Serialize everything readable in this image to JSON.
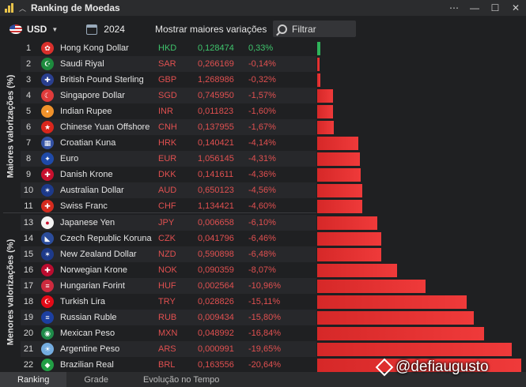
{
  "window": {
    "title": "Ranking de Moedas",
    "controls": [
      "⋯",
      "—",
      "☐",
      "✕"
    ]
  },
  "toolbar": {
    "currency": "USD",
    "year": "2024",
    "variations_label": "Mostrar maiores variações",
    "filter_placeholder": "Filtrar"
  },
  "side_labels": {
    "top": "Maiores valorizações (%)",
    "bottom": "Menores valorizações (%)"
  },
  "colors": {
    "positive": "#2fb35a",
    "negative": "#e03030"
  },
  "rows": [
    {
      "rank": "1",
      "name": "Hong Kong Dollar",
      "code": "HKD",
      "price": "0,128474",
      "change": "0,33%",
      "value": 0.33,
      "flag_color": "#d9302c",
      "flag_glyph": "✿"
    },
    {
      "rank": "2",
      "name": "Saudi Riyal",
      "code": "SAR",
      "price": "0,266169",
      "change": "-0,14%",
      "value": -0.14,
      "flag_color": "#1d8a3e",
      "flag_glyph": "☪"
    },
    {
      "rank": "3",
      "name": "British Pound Sterling",
      "code": "GBP",
      "price": "1,268986",
      "change": "-0,32%",
      "value": -0.32,
      "flag_color": "#2a3f8f",
      "flag_glyph": "✚"
    },
    {
      "rank": "4",
      "name": "Singapore Dollar",
      "code": "SGD",
      "price": "0,745950",
      "change": "-1,57%",
      "value": -1.57,
      "flag_color": "#e03b3b",
      "flag_glyph": "☾"
    },
    {
      "rank": "5",
      "name": "Indian Rupee",
      "code": "INR",
      "price": "0,011823",
      "change": "-1,60%",
      "value": -1.6,
      "flag_color": "#f0922b",
      "flag_glyph": "•"
    },
    {
      "rank": "6",
      "name": "Chinese Yuan Offshore",
      "code": "CNH",
      "price": "0,137955",
      "change": "-1,67%",
      "value": -1.67,
      "flag_color": "#d9261c",
      "flag_glyph": "★"
    },
    {
      "rank": "7",
      "name": "Croatian Kuna",
      "code": "HRK",
      "price": "0,140421",
      "change": "-4,14%",
      "value": -4.14,
      "flag_color": "#3351a3",
      "flag_glyph": "▦"
    },
    {
      "rank": "8",
      "name": "Euro",
      "code": "EUR",
      "price": "1,056145",
      "change": "-4,31%",
      "value": -4.31,
      "flag_color": "#1f4aa8",
      "flag_glyph": "✦"
    },
    {
      "rank": "9",
      "name": "Danish Krone",
      "code": "DKK",
      "price": "0,141611",
      "change": "-4,36%",
      "value": -4.36,
      "flag_color": "#c8102e",
      "flag_glyph": "✚"
    },
    {
      "rank": "10",
      "name": "Australian Dollar",
      "code": "AUD",
      "price": "0,650123",
      "change": "-4,56%",
      "value": -4.56,
      "flag_color": "#1d3a8a",
      "flag_glyph": "✶"
    },
    {
      "rank": "11",
      "name": "Swiss Franc",
      "code": "CHF",
      "price": "1,134421",
      "change": "-4,60%",
      "value": -4.6,
      "flag_color": "#d52b1e",
      "flag_glyph": "✚"
    },
    {
      "rank": "13",
      "name": "Japanese Yen",
      "code": "JPY",
      "price": "0,006658",
      "change": "-6,10%",
      "value": -6.1,
      "flag_color": "#f4f4f4",
      "flag_glyph": "●"
    },
    {
      "rank": "14",
      "name": "Czech Republic Koruna",
      "code": "CZK",
      "price": "0,041796",
      "change": "-6,46%",
      "value": -6.46,
      "flag_color": "#2b4c9b",
      "flag_glyph": "◣"
    },
    {
      "rank": "15",
      "name": "New Zealand Dollar",
      "code": "NZD",
      "price": "0,590898",
      "change": "-6,48%",
      "value": -6.48,
      "flag_color": "#1d3a8a",
      "flag_glyph": "✶"
    },
    {
      "rank": "16",
      "name": "Norwegian Krone",
      "code": "NOK",
      "price": "0,090359",
      "change": "-8,07%",
      "value": -8.07,
      "flag_color": "#ba0c2f",
      "flag_glyph": "✚"
    },
    {
      "rank": "17",
      "name": "Hungarian Forint",
      "code": "HUF",
      "price": "0,002564",
      "change": "-10,96%",
      "value": -10.96,
      "flag_color": "#cd2a3e",
      "flag_glyph": "≡"
    },
    {
      "rank": "18",
      "name": "Turkish Lira",
      "code": "TRY",
      "price": "0,028826",
      "change": "-15,11%",
      "value": -15.11,
      "flag_color": "#e30a17",
      "flag_glyph": "☪"
    },
    {
      "rank": "19",
      "name": "Russian Ruble",
      "code": "RUB",
      "price": "0,009434",
      "change": "-15,80%",
      "value": -15.8,
      "flag_color": "#1c3fa0",
      "flag_glyph": "≡"
    },
    {
      "rank": "20",
      "name": "Mexican Peso",
      "code": "MXN",
      "price": "0,048992",
      "change": "-16,84%",
      "value": -16.84,
      "flag_color": "#1e8a49",
      "flag_glyph": "◉"
    },
    {
      "rank": "21",
      "name": "Argentine Peso",
      "code": "ARS",
      "price": "0,000991",
      "change": "-19,65%",
      "value": -19.65,
      "flag_color": "#74acdf",
      "flag_glyph": "☀"
    },
    {
      "rank": "22",
      "name": "Brazilian Real",
      "code": "BRL",
      "price": "0,163556",
      "change": "-20,64%",
      "value": -20.64,
      "flag_color": "#229e45",
      "flag_glyph": "◆"
    }
  ],
  "tabs": [
    "Ranking",
    "Grade",
    "Evolução no Tempo"
  ],
  "watermark": "@defiaugusto"
}
